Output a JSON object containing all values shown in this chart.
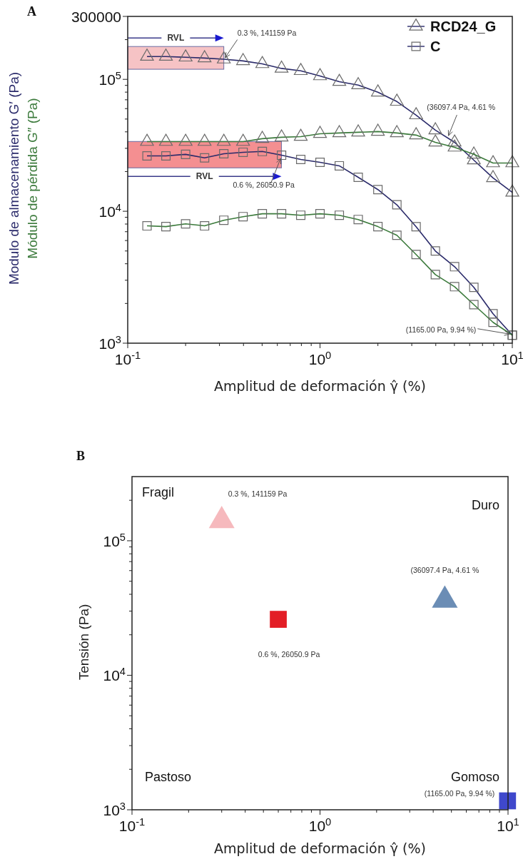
{
  "chart_data": [
    {
      "type": "line",
      "title": "A",
      "xlabel": "Amplitud de deformación  γ̂ (%)",
      "ylabel": "Modulo de almacenamiento G′ (Pa)\nMódulo de pérdida   G″ (Pa)",
      "log": "xy",
      "legend": "top right",
      "x": [
        0.126,
        0.158,
        0.2,
        0.251,
        0.316,
        0.398,
        0.501,
        0.631,
        0.794,
        1,
        1.26,
        1.58,
        2,
        2.51,
        3.16,
        3.98,
        5.01,
        6.31,
        7.94,
        10
      ],
      "xlim": [
        0.1,
        10
      ],
      "ylim": [
        1000,
        300000
      ],
      "xticks": [
        {
          "value": 0.1,
          "label": "10$^{-1}$"
        },
        {
          "value": 0.2,
          "label": null
        },
        {
          "value": 0.3,
          "label": null
        },
        {
          "value": 0.4,
          "label": null
        },
        {
          "value": 0.5,
          "label": null
        },
        {
          "value": 0.6,
          "label": null
        },
        {
          "value": 0.7,
          "label": null
        },
        {
          "value": 0.8,
          "label": null
        },
        {
          "value": 0.9,
          "label": null
        },
        {
          "value": 1,
          "label": "10$^{0}$"
        },
        {
          "value": 2,
          "label": null
        },
        {
          "value": 3,
          "label": null
        },
        {
          "value": 4,
          "label": null
        },
        {
          "value": 5,
          "label": null
        },
        {
          "value": 6,
          "label": null
        },
        {
          "value": 7,
          "label": null
        },
        {
          "value": 8,
          "label": null
        },
        {
          "value": 9,
          "label": null
        },
        {
          "value": 10,
          "label": "10$^{1}$"
        }
      ],
      "yticks": [
        {
          "value": 1000,
          "label": "10$^{3}$"
        },
        {
          "value": 2000,
          "label": null
        },
        {
          "value": 3000,
          "label": null
        },
        {
          "value": 4000,
          "label": null
        },
        {
          "value": 5000,
          "label": null
        },
        {
          "value": 6000,
          "label": null
        },
        {
          "value": 7000,
          "label": null
        },
        {
          "value": 8000,
          "label": null
        },
        {
          "value": 9000,
          "label": null
        },
        {
          "value": 10000,
          "label": "10$^{4}$"
        },
        {
          "value": 20000,
          "label": null
        },
        {
          "value": 30000,
          "label": null
        },
        {
          "value": 40000,
          "label": null
        },
        {
          "value": 50000,
          "label": null
        },
        {
          "value": 60000,
          "label": null
        },
        {
          "value": 70000,
          "label": null
        },
        {
          "value": 80000,
          "label": null
        },
        {
          "value": 90000,
          "label": null
        },
        {
          "value": 100000,
          "label": "10$^{5}$"
        },
        {
          "value": 200000,
          "label": null
        },
        300000
      ],
      "series": [
        {
          "name": "RCD24_G",
          "color": "#2a2a6a",
          "marker": "triangle",
          "values": [
            149000,
            149000,
            147000,
            145000,
            142000,
            138000,
            131000,
            121000,
            116000,
            106000,
            96000,
            90500,
            79800,
            67900,
            53600,
            41200,
            33300,
            24400,
            17900,
            13900
          ]
        },
        {
          "name": "C",
          "color": "#2a2a6a",
          "marker": "square",
          "values": [
            26300,
            26300,
            27000,
            25400,
            27300,
            28000,
            28400,
            26600,
            24700,
            23500,
            22100,
            18100,
            14600,
            11200,
            7640,
            5000,
            3800,
            2650,
            1670,
            1150
          ]
        },
        {
          "color": "#3b7a3b",
          "marker": "triangle",
          "values": [
            33700,
            33700,
            33700,
            33700,
            33700,
            33700,
            35500,
            36400,
            36800,
            38700,
            39200,
            39700,
            40200,
            39200,
            37800,
            33300,
            30500,
            27000,
            23200,
            23200
          ]
        },
        {
          "color": "#3b7a3b",
          "marker": "square",
          "values": [
            7750,
            7650,
            8030,
            7750,
            8550,
            9100,
            9570,
            9570,
            9330,
            9570,
            9330,
            8660,
            7650,
            6580,
            4700,
            3310,
            2680,
            1960,
            1440,
            1150
          ]
        }
      ],
      "bands": [
        {
          "axis": "x",
          "from": 0.1,
          "to": 0.316,
          "label": "RVL",
          "color": "#f5b8bb"
        },
        {
          "axis": "x",
          "from": 0.1,
          "to": 0.63,
          "label": "RVL",
          "color": "#f27b7e"
        }
      ],
      "annotations": [
        {
          "text": "0.3 %, 141159 Pa",
          "x": 0.316,
          "y": 141159
        },
        {
          "text": "0.6 %, 26050.9 Pa",
          "x": 0.63,
          "y": 26050.9
        },
        {
          "text": "(36097.4 Pa, 4.61 %",
          "x": 4.61,
          "y": 36097.4
        },
        {
          "text": "(1165.00 Pa, 9.94 %)",
          "x": 9.94,
          "y": 1165
        }
      ]
    },
    {
      "type": "scatter",
      "title": "B",
      "xlabel": "Amplitud de deformación γ̂  (%)",
      "ylabel": "Tensión   (Pa)",
      "log": "xy",
      "xlim": [
        0.1,
        10
      ],
      "ylim": [
        1000,
        300000
      ],
      "xticks": [
        {
          "value": 0.1,
          "label": "10$^{-1}$"
        },
        {
          "value": 0.2,
          "label": null
        },
        {
          "value": 0.3,
          "label": null
        },
        {
          "value": 0.4,
          "label": null
        },
        {
          "value": 0.5,
          "label": null
        },
        {
          "value": 0.6,
          "label": null
        },
        {
          "value": 0.7,
          "label": null
        },
        {
          "value": 0.8,
          "label": null
        },
        {
          "value": 0.9,
          "label": null
        },
        {
          "value": 1,
          "label": "10$^{0}$"
        },
        {
          "value": 2,
          "label": null
        },
        {
          "value": 3,
          "label": null
        },
        {
          "value": 4,
          "label": null
        },
        {
          "value": 5,
          "label": null
        },
        {
          "value": 6,
          "label": null
        },
        {
          "value": 7,
          "label": null
        },
        {
          "value": 8,
          "label": null
        },
        {
          "value": 9,
          "label": null
        },
        {
          "value": 10,
          "label": "10$^{1}$"
        }
      ],
      "yticks": [
        {
          "value": 1000,
          "label": "10$^{3}$"
        },
        {
          "value": 2000,
          "label": null
        },
        {
          "value": 3000,
          "label": null
        },
        {
          "value": 4000,
          "label": null
        },
        {
          "value": 5000,
          "label": null
        },
        {
          "value": 6000,
          "label": null
        },
        {
          "value": 7000,
          "label": null
        },
        {
          "value": 8000,
          "label": null
        },
        {
          "value": 9000,
          "label": null
        },
        {
          "value": 10000,
          "label": "10$^{4}$"
        },
        {
          "value": 20000,
          "label": null
        },
        {
          "value": 30000,
          "label": null
        },
        {
          "value": 40000,
          "label": null
        },
        {
          "value": 50000,
          "label": null
        },
        {
          "value": 60000,
          "label": null
        },
        {
          "value": 70000,
          "label": null
        },
        {
          "value": 80000,
          "label": null
        },
        {
          "value": 90000,
          "label": null
        },
        {
          "value": 100000,
          "label": "10$^{5}$"
        },
        {
          "value": 200000,
          "label": null
        }
      ],
      "series": [
        {
          "marker": "triangle",
          "x": [
            0.3,
            4.61
          ],
          "values": [
            141159,
            36097.4
          ],
          "colors": [
            "#f6b9bd",
            "#6b8db5"
          ],
          "value_labels": [
            "0.3 %, 141159 Pa",
            "(36097.4 Pa, 4.61 %"
          ]
        },
        {
          "marker": "square",
          "x": [
            0.6,
            9.94
          ],
          "values": [
            26050.9,
            1165
          ],
          "colors": [
            "#e31e26",
            "#3f48cc"
          ],
          "value_labels": [
            "0.6 %, 26050.9 Pa",
            "(1165.00 Pa, 9.94 %)"
          ]
        }
      ],
      "annotations": [
        "Fragil",
        "Duro",
        "Pastoso",
        "Gomoso"
      ]
    }
  ]
}
